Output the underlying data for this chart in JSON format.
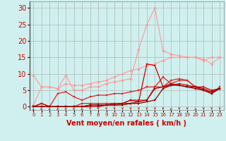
{
  "background_color": "#cff0ee",
  "grid_color": "#aaaaaa",
  "xlabel": "Vent moyen/en rafales ( km/h )",
  "ylabel_ticks": [
    0,
    5,
    10,
    15,
    20,
    25,
    30
  ],
  "xticks": [
    0,
    1,
    2,
    3,
    4,
    5,
    6,
    7,
    8,
    9,
    10,
    11,
    12,
    13,
    14,
    15,
    16,
    17,
    18,
    19,
    20,
    21,
    22,
    23
  ],
  "xlim": [
    -0.5,
    23.5
  ],
  "ylim": [
    -1,
    32
  ],
  "series": [
    {
      "x": [
        0,
        1,
        2,
        3,
        4,
        5,
        6,
        7,
        8,
        9,
        10,
        11,
        12,
        13,
        14,
        15,
        16,
        17,
        18,
        19,
        20,
        21,
        22,
        23
      ],
      "y": [
        0.5,
        6,
        6,
        5.5,
        7,
        6.5,
        6.5,
        7,
        7.5,
        8,
        9,
        10,
        11,
        11.5,
        12.5,
        13,
        14,
        15,
        15,
        15,
        15,
        14.5,
        13,
        15
      ],
      "color": "#ff9999",
      "marker": "D",
      "markersize": 2.0,
      "linewidth": 0.8
    },
    {
      "x": [
        0,
        1,
        2,
        3,
        4,
        5,
        6,
        7,
        8,
        9,
        10,
        11,
        12,
        13,
        14,
        15,
        16,
        17,
        18,
        19,
        20,
        21,
        22,
        23
      ],
      "y": [
        9.5,
        6,
        6,
        5.5,
        9.5,
        5,
        5,
        6,
        6,
        7,
        7.5,
        8,
        8.5,
        17.5,
        25,
        30,
        17,
        16,
        15.5,
        15,
        15,
        14,
        15,
        15
      ],
      "color": "#ff9999",
      "marker": "D",
      "markersize": 2.0,
      "linewidth": 0.8
    },
    {
      "x": [
        0,
        1,
        2,
        3,
        4,
        5,
        6,
        7,
        8,
        9,
        10,
        11,
        12,
        13,
        14,
        15,
        16,
        17,
        18,
        19,
        20,
        21,
        22,
        23
      ],
      "y": [
        0,
        1,
        0,
        4,
        4.5,
        3,
        2,
        3,
        3.5,
        3.5,
        4,
        4,
        4.5,
        5,
        6,
        6,
        6,
        8,
        8.5,
        8,
        6,
        5,
        4,
        6
      ],
      "color": "#dd2222",
      "marker": "s",
      "markersize": 2.0,
      "linewidth": 0.9
    },
    {
      "x": [
        0,
        1,
        2,
        3,
        4,
        5,
        6,
        7,
        8,
        9,
        10,
        11,
        12,
        13,
        14,
        15,
        16,
        17,
        18,
        19,
        20,
        21,
        22,
        23
      ],
      "y": [
        0,
        0,
        0,
        0,
        0,
        0,
        1,
        1,
        1,
        1,
        1,
        1,
        2,
        2,
        2,
        6,
        9,
        7,
        8,
        8,
        6,
        5,
        4.5,
        5.5
      ],
      "color": "#dd2222",
      "marker": "s",
      "markersize": 2.0,
      "linewidth": 0.9
    },
    {
      "x": [
        0,
        1,
        2,
        3,
        4,
        5,
        6,
        7,
        8,
        9,
        10,
        11,
        12,
        13,
        14,
        15,
        16,
        17,
        18,
        19,
        20,
        21,
        22,
        23
      ],
      "y": [
        0,
        1,
        0,
        0,
        0,
        0,
        0,
        0.5,
        0.5,
        0.5,
        1,
        1,
        2,
        1.5,
        13,
        12.5,
        6,
        6.5,
        7,
        6.5,
        6,
        6,
        5,
        5.5
      ],
      "color": "#cc0000",
      "marker": "s",
      "markersize": 2.0,
      "linewidth": 0.9
    },
    {
      "x": [
        0,
        1,
        2,
        3,
        4,
        5,
        6,
        7,
        8,
        9,
        10,
        11,
        12,
        13,
        14,
        15,
        16,
        17,
        18,
        19,
        20,
        21,
        22,
        23
      ],
      "y": [
        0,
        0,
        0,
        0,
        0,
        0,
        0,
        0,
        0,
        0.5,
        0.5,
        1,
        1,
        1.5,
        2,
        5.5,
        6,
        7,
        6.5,
        6,
        6,
        5.5,
        4.5,
        5.5
      ],
      "color": "#aa0000",
      "marker": "s",
      "markersize": 2.0,
      "linewidth": 0.9
    },
    {
      "x": [
        0,
        1,
        2,
        3,
        4,
        5,
        6,
        7,
        8,
        9,
        10,
        11,
        12,
        13,
        14,
        15,
        16,
        17,
        18,
        19,
        20,
        21,
        22,
        23
      ],
      "y": [
        0,
        0,
        0,
        0,
        0,
        0,
        0,
        0.5,
        0.5,
        0.5,
        0.5,
        0.5,
        1,
        1,
        1.5,
        2,
        5.5,
        6.5,
        6.5,
        6,
        5.5,
        5,
        4,
        5.5
      ],
      "color": "#880000",
      "marker": "s",
      "markersize": 2.0,
      "linewidth": 0.9
    }
  ],
  "arrow_directions": [
    90,
    225,
    225,
    225,
    135,
    135,
    225,
    270,
    270,
    270,
    270,
    270,
    270,
    270,
    270,
    270,
    270,
    225,
    270,
    270,
    315,
    270,
    270,
    270
  ],
  "xlabel_color": "#cc0000",
  "xlabel_fontsize": 7,
  "tick_color": "#cc0000",
  "ytick_fontsize": 7,
  "xtick_fontsize": 5
}
